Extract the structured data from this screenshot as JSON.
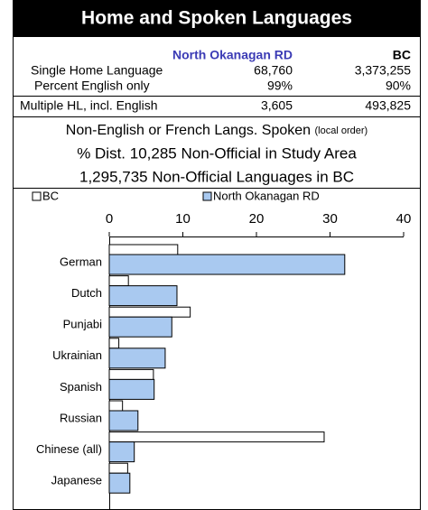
{
  "header": {
    "title": "Home and Spoken Languages"
  },
  "table": {
    "columns": [
      "North Okanagan RD",
      "BC"
    ],
    "rows": [
      [
        "Single Home Language",
        "68,760",
        "3,373,255"
      ],
      [
        "Percent English only",
        "99%",
        "90%"
      ],
      [
        "Multiple HL, incl. English",
        "3,605",
        "493,825"
      ]
    ]
  },
  "notes": {
    "line1": "Non-English or French Langs. Spoken",
    "line1_small": "(local order)",
    "line2": "% Dist. 10,285 Non-Official in Study Area",
    "line3": "1,295,735 Non-Official Languages in BC"
  },
  "chart_data": {
    "type": "bar",
    "orientation": "horizontal",
    "categories": [
      "German",
      "Dutch",
      "Punjabi",
      "Ukrainian",
      "Spanish",
      "Russian",
      "Chinese (all)",
      "Japanese"
    ],
    "series": [
      {
        "name": "BC",
        "color": "#ffffff",
        "values": [
          9.3,
          2.6,
          11.0,
          1.3,
          6.0,
          1.8,
          29.2,
          2.5
        ]
      },
      {
        "name": "North Okanagan RD",
        "color": "#a9c9f0",
        "values": [
          32.0,
          9.2,
          8.5,
          7.6,
          6.1,
          3.9,
          3.4,
          2.8
        ]
      }
    ],
    "xlim": [
      0,
      40
    ],
    "xticks": [
      0,
      10,
      20,
      30,
      40
    ],
    "legend": "top"
  }
}
